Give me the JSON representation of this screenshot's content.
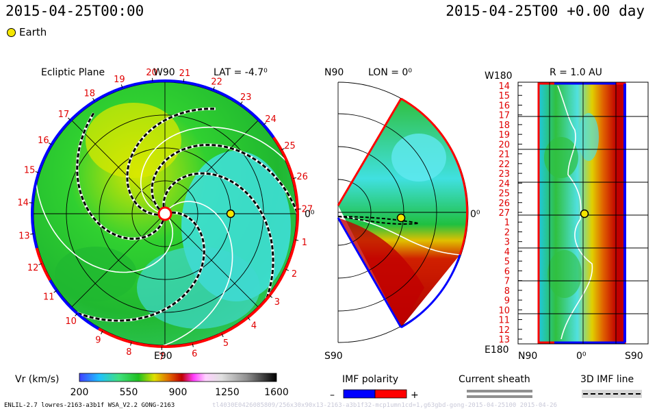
{
  "header": {
    "left_time": "2015-04-25T00:00",
    "right_time": "2015-04-25T00 +0.00 day"
  },
  "legend": {
    "earth_label": "Earth"
  },
  "colors": {
    "low_speed": "#20a0ff",
    "high_speed": "#c00000",
    "polarity_negative": "#0000ff",
    "polarity_positive": "#ff0000",
    "earth": "#f4e600",
    "sheath": "#909090"
  },
  "chart_data": [
    {
      "type": "heatmap",
      "title": "Ecliptic Plane",
      "annotation": "LAT = -4.7⁰",
      "top_label": "W90",
      "bottom_label": "E90",
      "right_label": "0⁰",
      "rim_ticks": [
        "18",
        "19",
        "20",
        "21",
        "22",
        "23",
        "24",
        "25",
        "26",
        "27",
        "1",
        "2",
        "3",
        "4",
        "5",
        "6",
        "7",
        "8",
        "9",
        "10",
        "11",
        "12",
        "13",
        "14",
        "15",
        "16",
        "17"
      ],
      "radial_rings_au": [
        0.25,
        0.5,
        0.75,
        1.0
      ],
      "earth_radius_au": 1.0,
      "quantity": "Vr (km/s)"
    },
    {
      "type": "heatmap",
      "top_label": "N90",
      "annotation": "LON = 0⁰",
      "bottom_label": "S90",
      "right_label": "0⁰",
      "quantity": "Vr (km/s)"
    },
    {
      "type": "heatmap",
      "annotation": "R = 1.0 AU",
      "corner_top_left": "W180",
      "corner_bottom_left": "E180",
      "x_ticks": [
        "N90",
        "0⁰",
        "S90"
      ],
      "y_ticks": [
        "14",
        "15",
        "16",
        "17",
        "18",
        "19",
        "20",
        "21",
        "22",
        "23",
        "24",
        "25",
        "26",
        "27",
        "1",
        "2",
        "3",
        "4",
        "5",
        "6",
        "7",
        "8",
        "9",
        "10",
        "11",
        "12",
        "13"
      ],
      "quantity": "Vr (km/s)"
    },
    {
      "type": "colorbar",
      "label": "Vr (km/s)",
      "range": [
        200,
        1600
      ],
      "ticks": [
        "200",
        "550",
        "900",
        "1250",
        "1600"
      ]
    }
  ],
  "legends": {
    "imf_polarity": {
      "title": "IMF polarity",
      "minus": "–",
      "plus": "+"
    },
    "current_sheath": {
      "title": "Current sheath"
    },
    "imf_line": {
      "title": "3D IMF line"
    }
  },
  "footer": {
    "text": "ENLIL-2.7 lowres-2163-a3b1f WSA_V2.2 GONG-2163",
    "watermark": "tl4030E0426085809/256x30x90x13-2163-a3b1f32-mcp1umn1cd=1,g63gbd-gong-2015-04-25100     2015-04-26"
  }
}
